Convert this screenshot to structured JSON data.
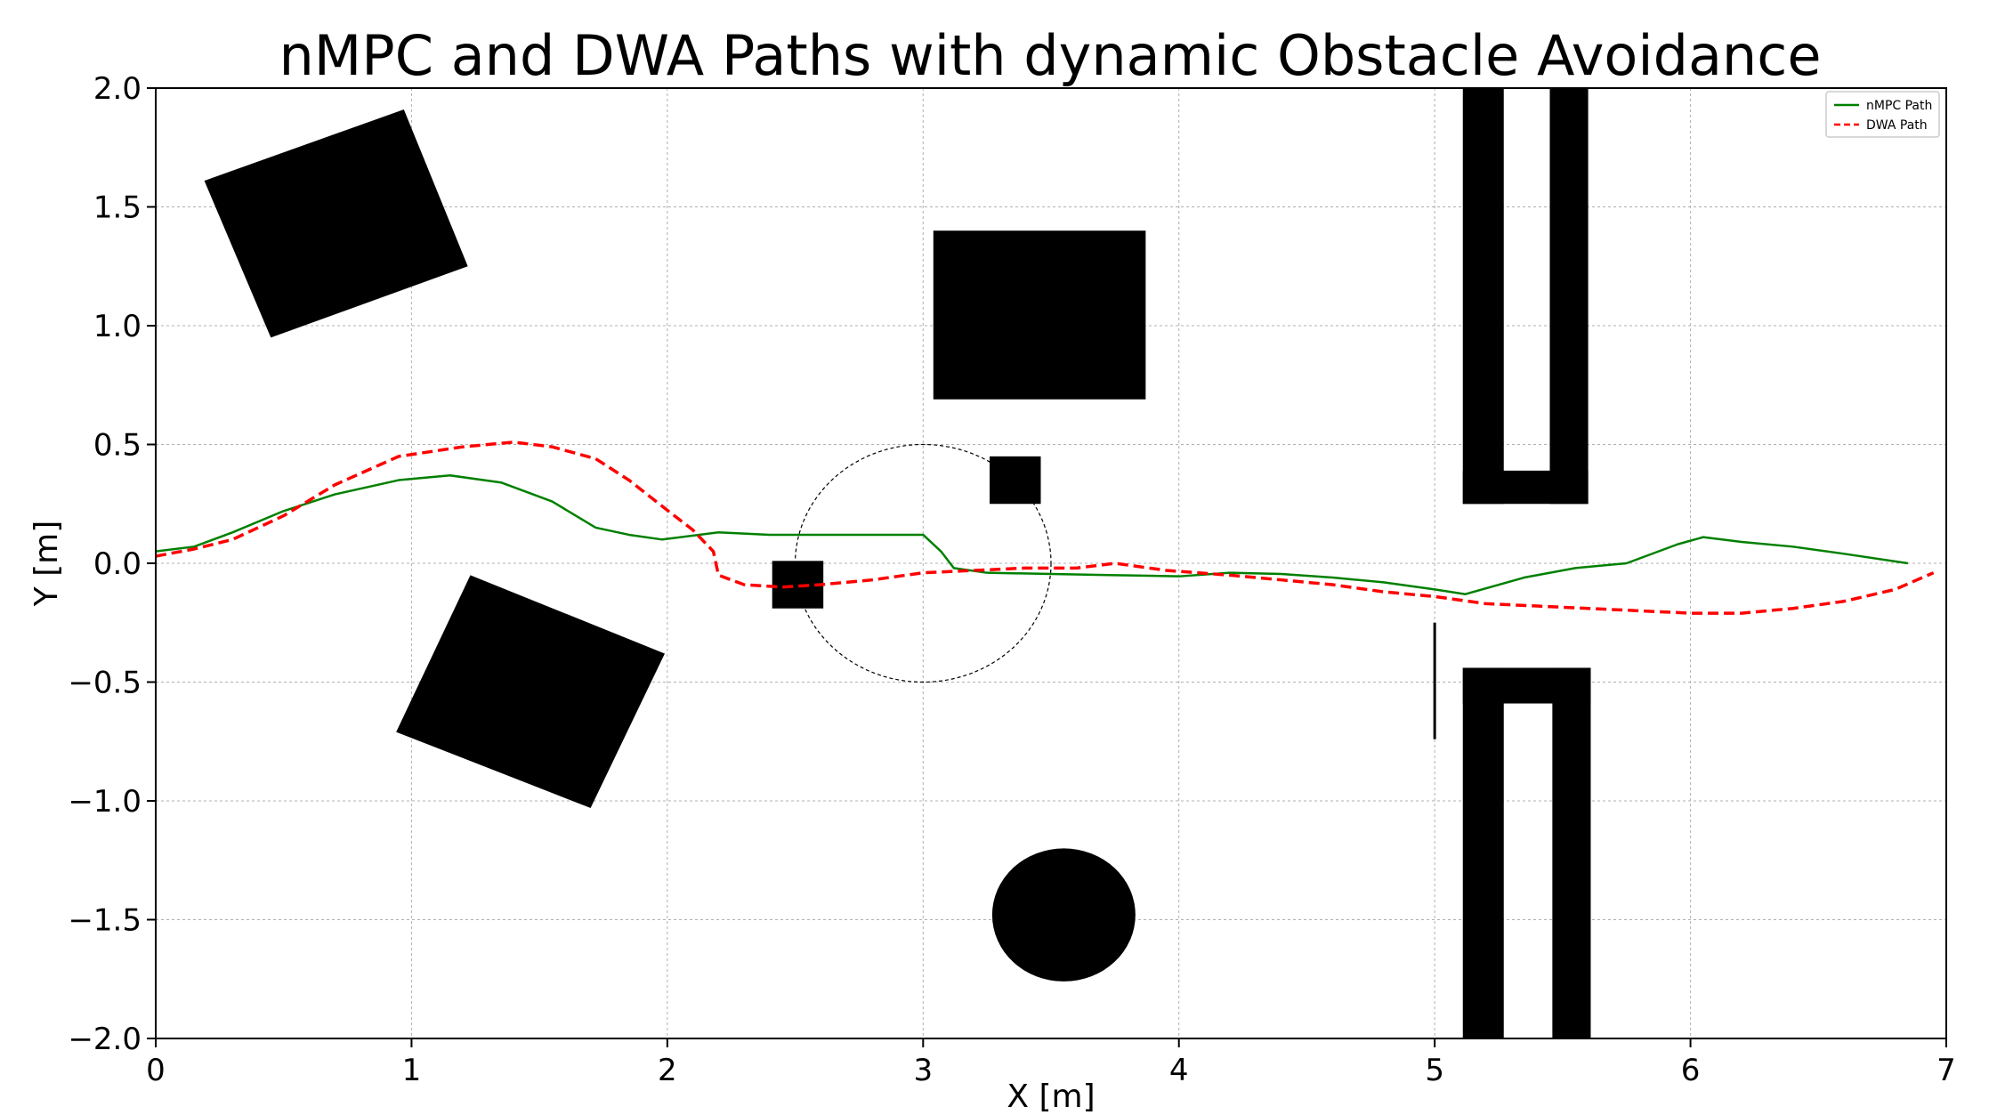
{
  "chart_data": {
    "type": "line",
    "title": "nMPC and DWA Paths with dynamic Obstacle Avoidance",
    "xlabel": "X [m]",
    "ylabel": "Y [m]",
    "xlim": [
      0,
      7
    ],
    "ylim": [
      -2.0,
      2.0
    ],
    "xticks": [
      0,
      1,
      2,
      3,
      4,
      5,
      6,
      7
    ],
    "xtick_labels": [
      "0",
      "1",
      "2",
      "3",
      "4",
      "5",
      "6",
      "7"
    ],
    "yticks": [
      -2.0,
      -1.5,
      -1.0,
      -0.5,
      0.0,
      0.5,
      1.0,
      1.5,
      2.0
    ],
    "ytick_labels": [
      "−2.0",
      "−1.5",
      "−1.0",
      "−0.5",
      "0.0",
      "0.5",
      "1.0",
      "1.5",
      "2.0"
    ],
    "grid": true,
    "legend_position": "top-right",
    "series": [
      {
        "name": "nMPC Path",
        "color": "#008000",
        "style": "solid",
        "x": [
          0.0,
          0.15,
          0.3,
          0.5,
          0.7,
          0.95,
          1.15,
          1.35,
          1.55,
          1.72,
          1.85,
          1.98,
          2.2,
          2.4,
          2.6,
          2.85,
          3.0,
          3.07,
          3.12,
          3.25,
          3.5,
          3.75,
          4.0,
          4.2,
          4.4,
          4.6,
          4.8,
          5.0,
          5.12,
          5.35,
          5.55,
          5.75,
          5.95,
          6.05,
          6.2,
          6.4,
          6.6,
          6.85
        ],
        "y": [
          0.05,
          0.07,
          0.13,
          0.22,
          0.29,
          0.35,
          0.37,
          0.34,
          0.26,
          0.15,
          0.12,
          0.1,
          0.13,
          0.12,
          0.12,
          0.12,
          0.12,
          0.05,
          -0.02,
          -0.04,
          -0.045,
          -0.05,
          -0.055,
          -0.04,
          -0.045,
          -0.06,
          -0.08,
          -0.11,
          -0.13,
          -0.06,
          -0.02,
          0.0,
          0.08,
          0.11,
          0.09,
          0.07,
          0.04,
          0.0
        ]
      },
      {
        "name": "DWA Path",
        "color": "#ff0000",
        "style": "dashed",
        "x": [
          0.0,
          0.15,
          0.3,
          0.5,
          0.7,
          0.95,
          1.2,
          1.4,
          1.55,
          1.72,
          1.85,
          1.98,
          2.1,
          2.18,
          2.2,
          2.3,
          2.45,
          2.6,
          2.8,
          3.0,
          3.2,
          3.4,
          3.6,
          3.75,
          3.95,
          4.2,
          4.4,
          4.6,
          4.8,
          5.0,
          5.2,
          5.4,
          5.6,
          5.8,
          6.0,
          6.2,
          6.4,
          6.6,
          6.8,
          6.95
        ],
        "y": [
          0.03,
          0.06,
          0.1,
          0.2,
          0.33,
          0.45,
          0.49,
          0.51,
          0.49,
          0.44,
          0.35,
          0.24,
          0.14,
          0.05,
          -0.05,
          -0.09,
          -0.1,
          -0.09,
          -0.07,
          -0.04,
          -0.03,
          -0.02,
          -0.02,
          0.0,
          -0.03,
          -0.05,
          -0.07,
          -0.09,
          -0.12,
          -0.14,
          -0.17,
          -0.18,
          -0.19,
          -0.2,
          -0.21,
          -0.21,
          -0.19,
          -0.16,
          -0.11,
          -0.04
        ]
      }
    ],
    "obstacles": [
      {
        "shape": "polygon",
        "points": [
          [
            0.19,
            1.61
          ],
          [
            0.97,
            1.91
          ],
          [
            1.22,
            1.25
          ],
          [
            0.45,
            0.95
          ]
        ]
      },
      {
        "shape": "polygon",
        "points": [
          [
            1.23,
            -0.05
          ],
          [
            1.99,
            -0.38
          ],
          [
            1.7,
            -1.03
          ],
          [
            0.94,
            -0.71
          ]
        ]
      },
      {
        "shape": "rect",
        "x": 3.04,
        "y": 0.69,
        "w": 0.83,
        "h": 0.71
      },
      {
        "shape": "rect",
        "x": 3.26,
        "y": 0.25,
        "w": 0.2,
        "h": 0.2
      },
      {
        "shape": "rect",
        "x": 2.41,
        "y": -0.19,
        "w": 0.2,
        "h": 0.2
      },
      {
        "shape": "ellipse",
        "cx": 3.55,
        "cy": -1.48,
        "rx": 0.28,
        "ry": 0.28
      },
      {
        "shape": "rect",
        "x": 5.11,
        "y": 0.25,
        "w": 0.16,
        "h": 1.75
      },
      {
        "shape": "rect",
        "x": 5.45,
        "y": 0.25,
        "w": 0.15,
        "h": 1.75
      },
      {
        "shape": "rect",
        "x": 5.11,
        "y": 0.25,
        "w": 0.49,
        "h": 0.14
      },
      {
        "shape": "rect",
        "x": 5.11,
        "y": -2.0,
        "w": 0.16,
        "h": 1.56
      },
      {
        "shape": "rect",
        "x": 5.46,
        "y": -2.0,
        "w": 0.15,
        "h": 1.56
      },
      {
        "shape": "rect",
        "x": 5.11,
        "y": -0.59,
        "w": 0.5,
        "h": 0.15
      },
      {
        "shape": "line",
        "x1": 5.0,
        "y1": -0.25,
        "x2": 5.0,
        "y2": -0.74
      }
    ],
    "dynamic_obstacle_zone": {
      "cx": 3.0,
      "cy": 0.0,
      "rx": 0.5,
      "ry": 0.5
    }
  }
}
